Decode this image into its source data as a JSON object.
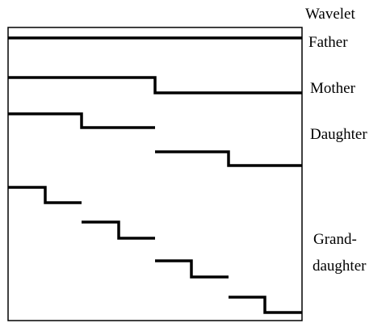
{
  "labels": {
    "wavelet": "Wavelet",
    "father": "Father",
    "mother": "Mother",
    "daughter": "Daughter",
    "grand_line1": "Grand-",
    "grand_line2": "daughter"
  },
  "colors": {
    "ink": "#000000",
    "background": "#ffffff"
  }
}
